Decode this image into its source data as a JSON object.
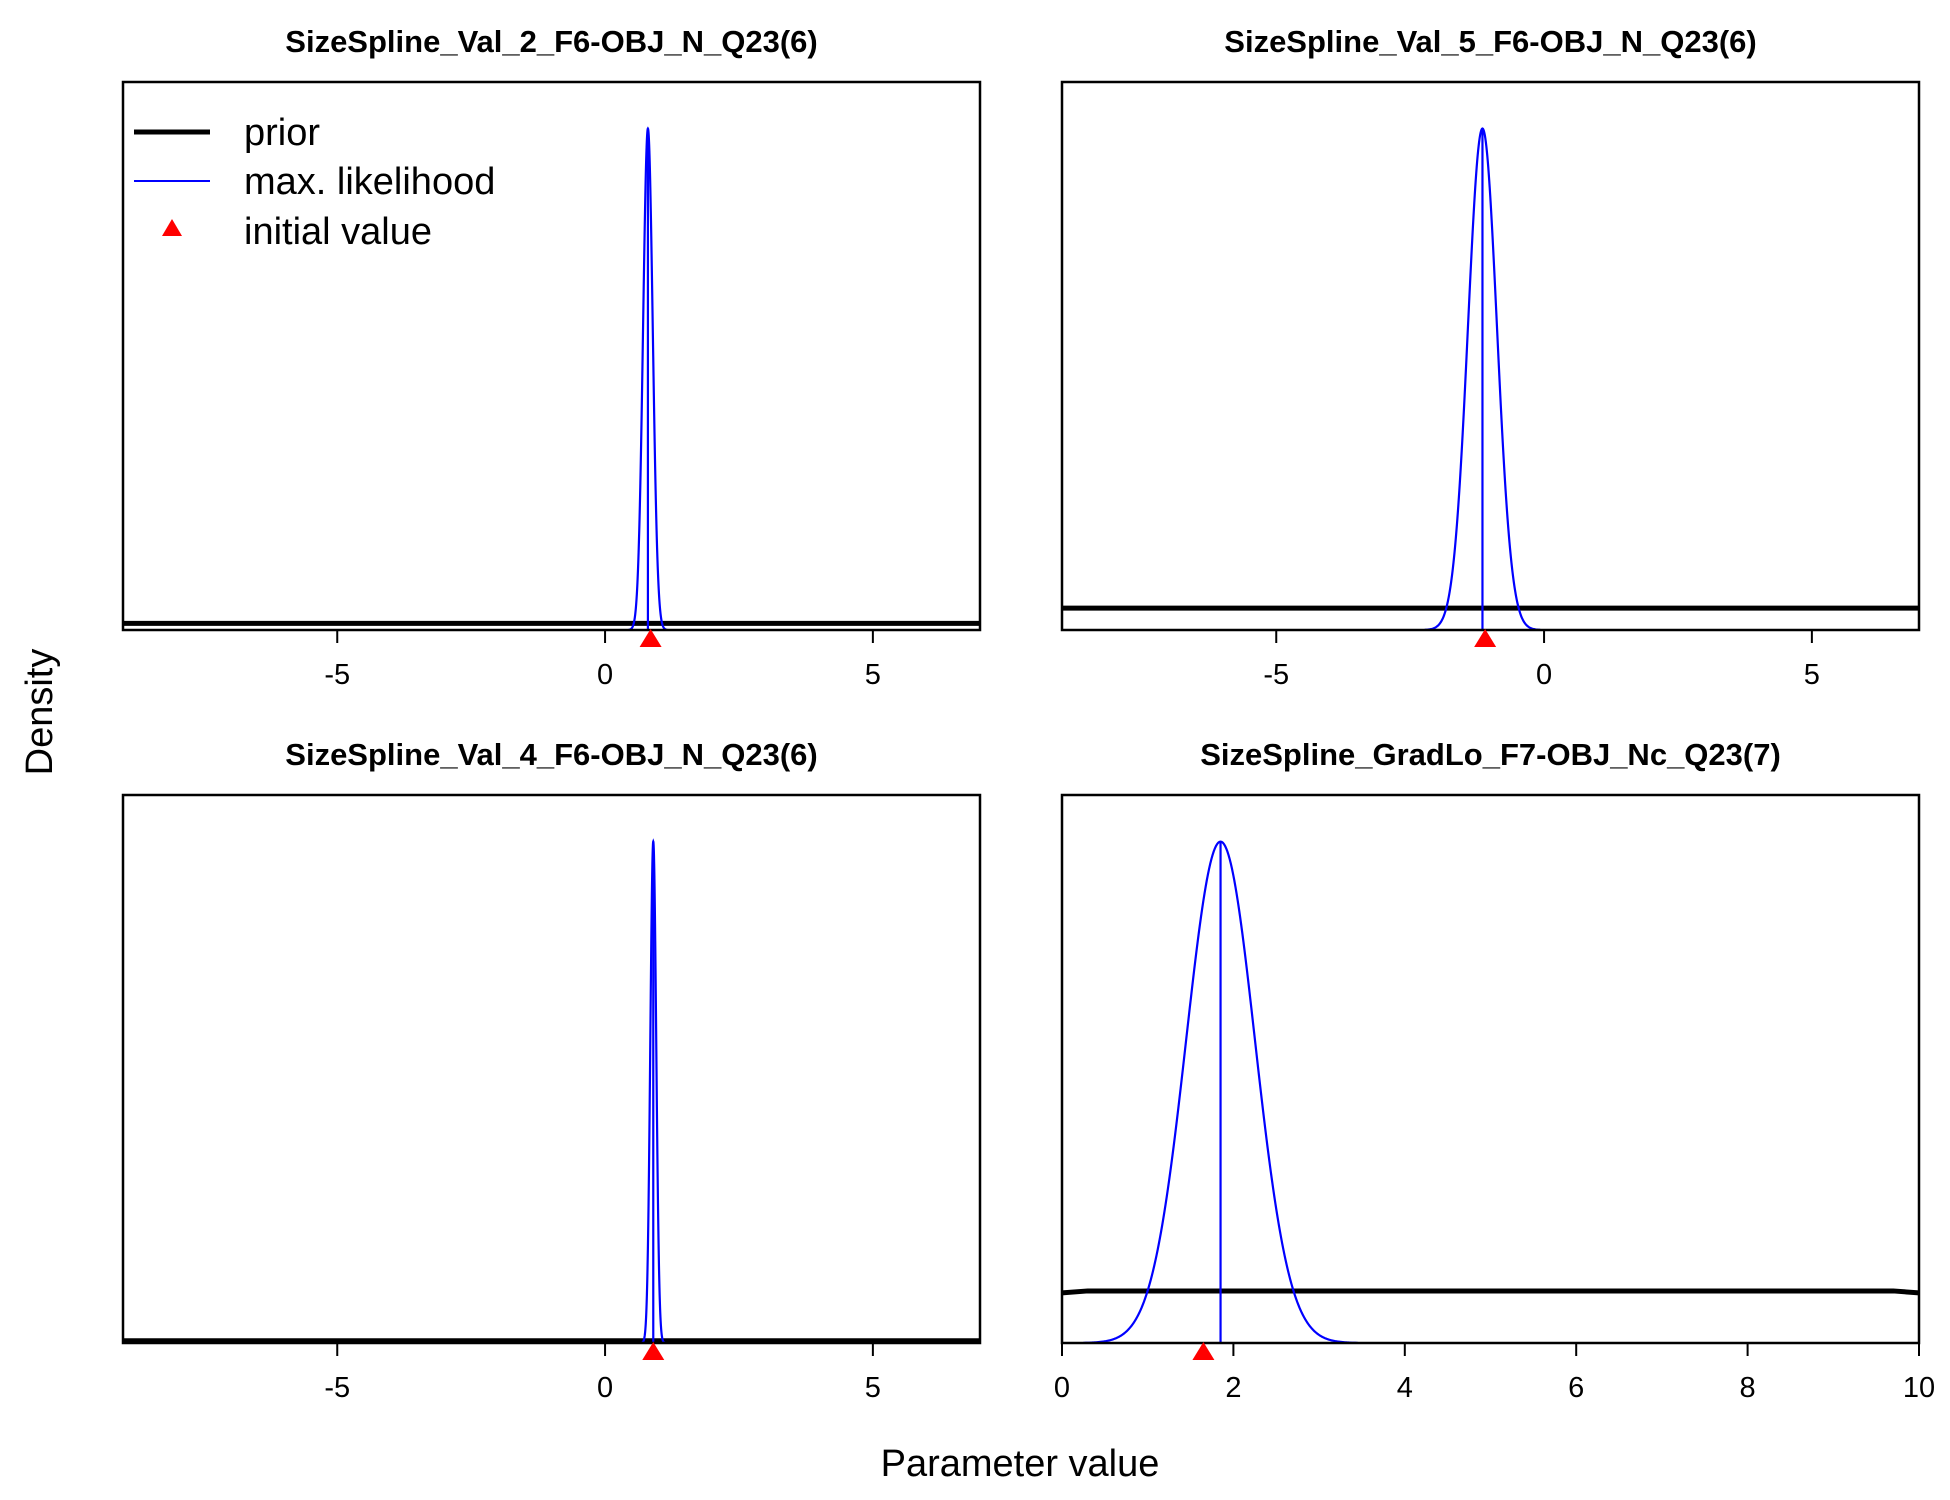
{
  "figure": {
    "xlabel": "Parameter value",
    "ylabel": "Density",
    "legend": {
      "placement": "top-left of first panel",
      "items": [
        {
          "label": "prior",
          "style": "thick-line",
          "color": "#000000"
        },
        {
          "label": "max. likelihood",
          "style": "thin-line",
          "color": "#0000ff"
        },
        {
          "label": "initial value",
          "style": "triangle",
          "color": "#ff0000"
        }
      ]
    },
    "colors": {
      "prior": "#000000",
      "mle": "#0000ff",
      "initial": "#ff0000"
    }
  },
  "chart_data": [
    {
      "type": "line",
      "title": "SizeSpline_Val_2_F6-OBJ_N_Q23(6)",
      "xlim": [
        -9,
        7
      ],
      "xticks": [
        -5,
        0,
        5
      ],
      "tick_labels": [
        "-5",
        "0",
        "5"
      ],
      "series": [
        {
          "name": "prior",
          "kind": "flat",
          "relative_height": 0.012
        },
        {
          "name": "max. likelihood",
          "kind": "normal",
          "mean": 0.8,
          "sd": 0.09
        }
      ],
      "initial_value": 0.85
    },
    {
      "type": "line",
      "title": "SizeSpline_Val_5_F6-OBJ_N_Q23(6)",
      "xlim": [
        -9,
        7
      ],
      "xticks": [
        -5,
        0,
        5
      ],
      "tick_labels": [
        "-5",
        "0",
        "5"
      ],
      "series": [
        {
          "name": "prior",
          "kind": "flat",
          "relative_height": 0.04
        },
        {
          "name": "max. likelihood",
          "kind": "normal",
          "mean": -1.15,
          "sd": 0.27
        }
      ],
      "initial_value": -1.1
    },
    {
      "type": "line",
      "title": "SizeSpline_Val_4_F6-OBJ_N_Q23(6)",
      "xlim": [
        -9,
        7
      ],
      "xticks": [
        -5,
        0,
        5
      ],
      "tick_labels": [
        "-5",
        "0",
        "5"
      ],
      "series": [
        {
          "name": "prior",
          "kind": "flat",
          "relative_height": 0.004
        },
        {
          "name": "max. likelihood",
          "kind": "normal",
          "mean": 0.9,
          "sd": 0.055
        }
      ],
      "initial_value": 0.9
    },
    {
      "type": "line",
      "title": "SizeSpline_GradLo_F7-OBJ_Nc_Q23(7)",
      "xlim": [
        0,
        10
      ],
      "xticks": [
        0,
        2,
        4,
        6,
        8,
        10
      ],
      "tick_labels": [
        "0",
        "2",
        "4",
        "6",
        "8",
        "10"
      ],
      "series": [
        {
          "name": "prior",
          "kind": "flat",
          "relative_height": 0.095,
          "range": [
            0.3,
            9.7
          ]
        },
        {
          "name": "max. likelihood",
          "kind": "normal",
          "mean": 1.85,
          "sd": 0.4
        }
      ],
      "initial_value": 1.65
    }
  ]
}
